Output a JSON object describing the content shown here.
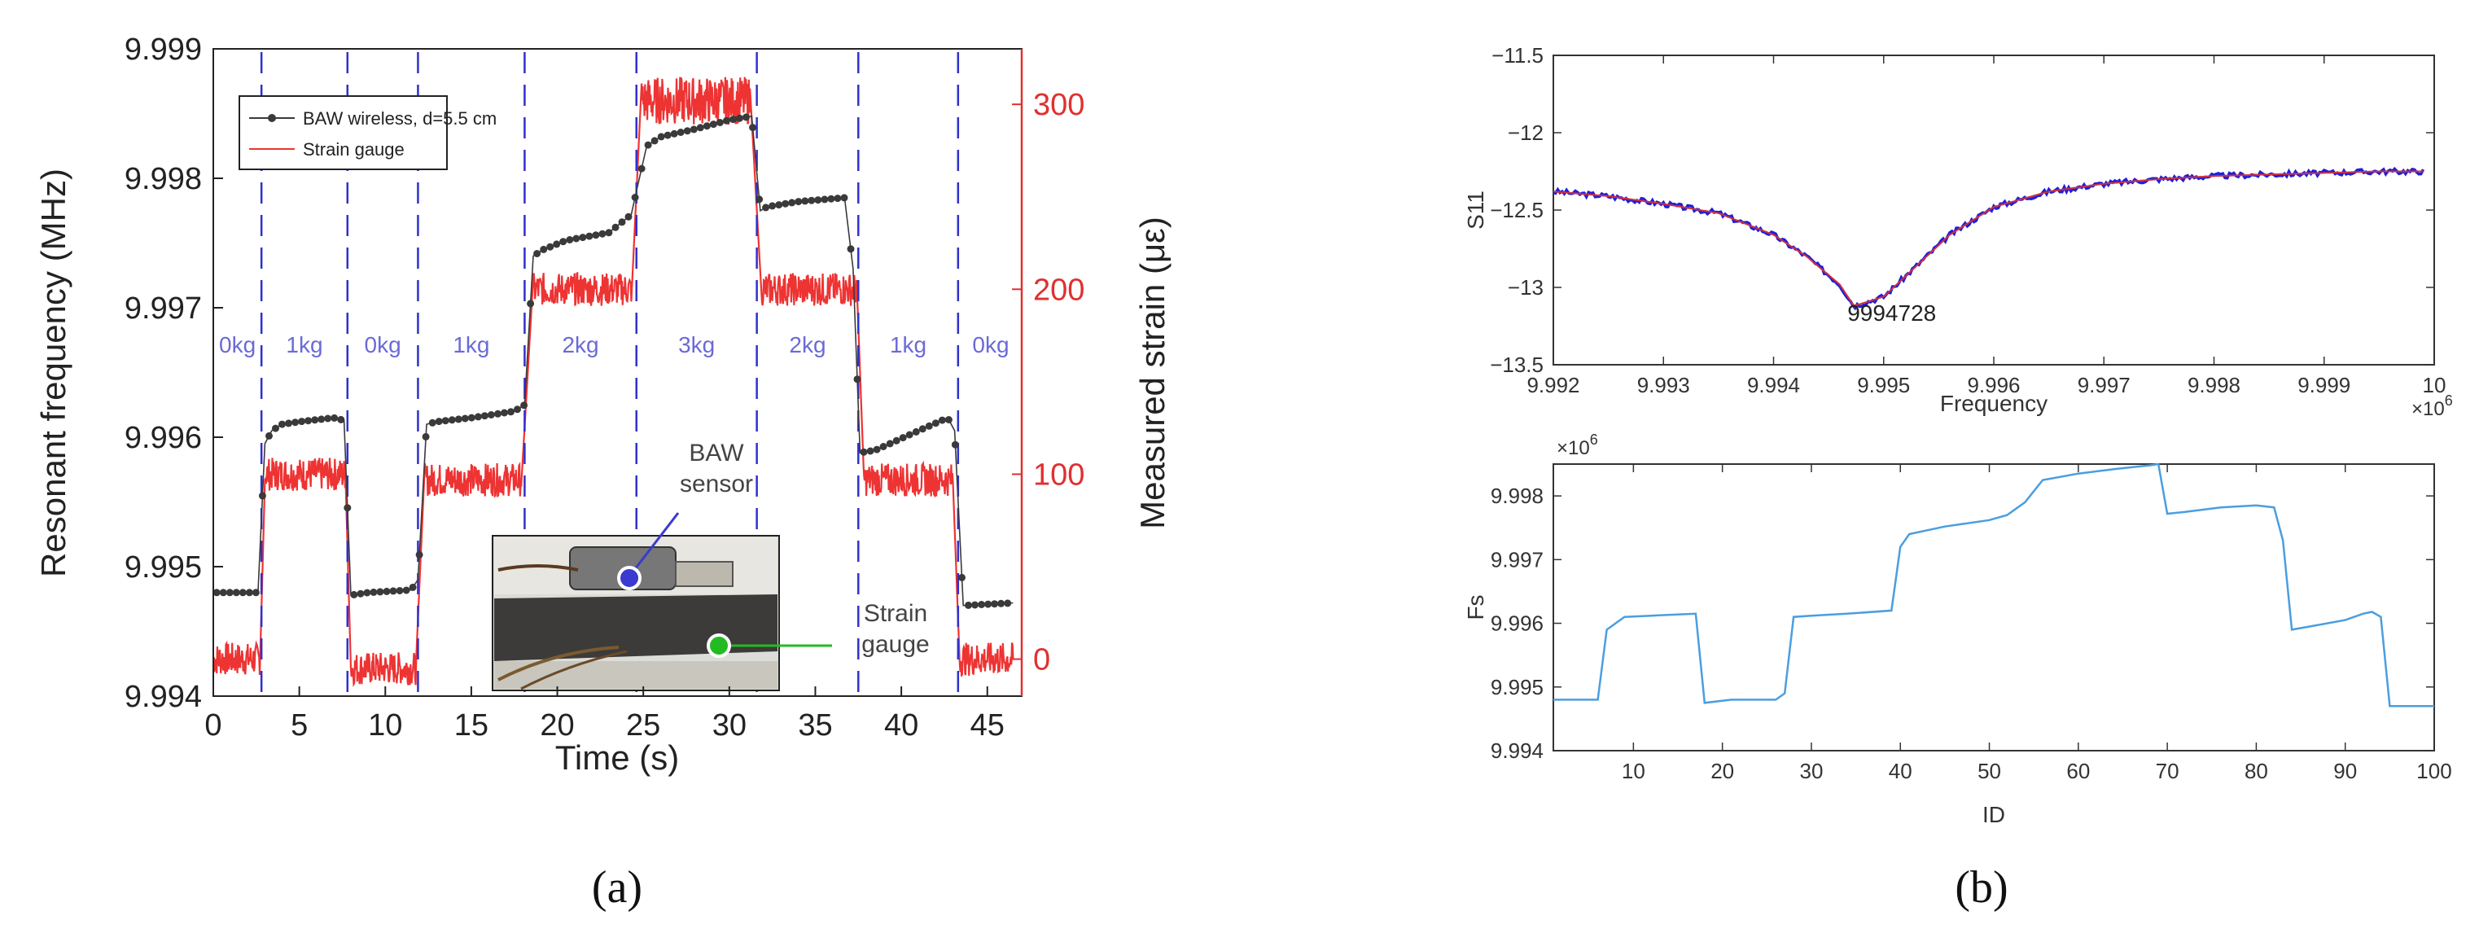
{
  "colors": {
    "baw_series": "#3a3a3a",
    "strain_series": "#ee3333",
    "strain_axis": "#e03030",
    "load_divider": "#3030cc",
    "load_label": "#6a6ad8",
    "s11_trace": "#2020d8",
    "s11_fit": "#d03040",
    "fs_trace": "#4a9ee0",
    "gauge_marker": "#22bb22",
    "sensor_marker": "#3a3ad0"
  },
  "panel_labels": [
    "(a)",
    "(b)"
  ],
  "chart_data": [
    {
      "id": "a",
      "type": "line",
      "title": "",
      "xlabel": "Time (s)",
      "ylabel": "Resonant frequency (MHz)",
      "y2label": "Measured strain (με)",
      "xlim": [
        0,
        47
      ],
      "ylim": [
        9.994,
        9.999
      ],
      "y2lim": [
        -20,
        330
      ],
      "xticks": [
        0,
        5,
        10,
        15,
        20,
        25,
        30,
        35,
        40,
        45
      ],
      "yticks": [
        9.994,
        9.995,
        9.996,
        9.997,
        9.998,
        9.999
      ],
      "ytick_labels": [
        "9.994",
        "9.995",
        "9.996",
        "9.997",
        "9.998",
        "9.999"
      ],
      "y2ticks": [
        0,
        100,
        200,
        300
      ],
      "grid": false,
      "legend_position": "top-left",
      "series": [
        {
          "name": "BAW wireless, d=5.5 cm",
          "axis": "left",
          "style": "line-with-dots",
          "x": [
            0,
            2.6,
            3.0,
            3.4,
            4.0,
            5.0,
            7.0,
            7.6,
            8.0,
            9.0,
            11.5,
            11.9,
            12.4,
            13.0,
            15.0,
            17.5,
            18.1,
            18.6,
            19.2,
            20.5,
            23.0,
            24.3,
            24.6,
            25.2,
            26.0,
            28.0,
            30.0,
            31.3,
            31.8,
            32.2,
            34.0,
            36.7,
            37.2,
            37.6,
            38.5,
            41.0,
            42.7,
            43.1,
            43.6,
            46.5
          ],
          "y": [
            9.9948,
            9.9948,
            9.99595,
            9.99605,
            9.9961,
            9.99612,
            9.99615,
            9.99613,
            9.99478,
            9.9948,
            9.99482,
            9.9949,
            9.9961,
            9.99612,
            9.99615,
            9.9962,
            9.99625,
            9.9974,
            9.99745,
            9.99752,
            9.99758,
            9.99772,
            9.9979,
            9.99825,
            9.99832,
            9.99838,
            9.99845,
            9.99848,
            9.99775,
            9.99778,
            9.99782,
            9.99785,
            9.9973,
            9.99588,
            9.9959,
            9.99605,
            9.99615,
            9.99605,
            9.9947,
            9.99472
          ]
        },
        {
          "name": "Strain gauge",
          "axis": "right",
          "style": "noisy-line",
          "levels": [
            {
              "t0": 0,
              "t1": 2.7,
              "value": 0
            },
            {
              "t0": 3.0,
              "t1": 7.7,
              "value": 100
            },
            {
              "t0": 8.0,
              "t1": 11.8,
              "value": -5
            },
            {
              "t0": 12.3,
              "t1": 17.9,
              "value": 97
            },
            {
              "t0": 18.6,
              "t1": 24.3,
              "value": 200
            },
            {
              "t0": 24.9,
              "t1": 31.2,
              "value": 302
            },
            {
              "t0": 31.9,
              "t1": 37.4,
              "value": 200
            },
            {
              "t0": 37.8,
              "t1": 43.0,
              "value": 97
            },
            {
              "t0": 43.4,
              "t1": 46.5,
              "value": 0
            }
          ]
        }
      ],
      "load_dividers_s": [
        2.8,
        7.8,
        11.9,
        18.1,
        24.6,
        31.6,
        37.5,
        43.3
      ],
      "load_labels": [
        {
          "text": "0kg",
          "t": 1.4
        },
        {
          "text": "1kg",
          "t": 5.3
        },
        {
          "text": "0kg",
          "t": 9.85
        },
        {
          "text": "1kg",
          "t": 15.0
        },
        {
          "text": "2kg",
          "t": 21.35
        },
        {
          "text": "3kg",
          "t": 28.1
        },
        {
          "text": "2kg",
          "t": 34.55
        },
        {
          "text": "1kg",
          "t": 40.4
        },
        {
          "text": "0kg",
          "t": 45.2
        }
      ],
      "annotations": {
        "baw_sensor": "BAW\nsensor",
        "strain_gauge": "Strain\ngauge"
      }
    },
    {
      "id": "b-top",
      "type": "line",
      "title": "",
      "xlabel": "Frequency",
      "ylabel": "S11",
      "x_multiplier": "×10^6",
      "xlim": [
        9.992,
        10.0
      ],
      "ylim": [
        -13.5,
        -11.5
      ],
      "xticks": [
        9.992,
        9.993,
        9.994,
        9.995,
        9.996,
        9.997,
        9.998,
        9.999,
        10.0
      ],
      "xtick_labels": [
        "9.992",
        "9.993",
        "9.994",
        "9.995",
        "9.996",
        "9.997",
        "9.998",
        "9.999",
        "10"
      ],
      "yticks": [
        -11.5,
        -12,
        -12.5,
        -13,
        -13.5
      ],
      "ytick_labels": [
        "−11.5",
        "−12",
        "−12.5",
        "−13",
        "−13.5"
      ],
      "grid": false,
      "series": [
        {
          "name": "S11",
          "x": [
            9.992,
            9.9925,
            9.993,
            9.9935,
            9.994,
            9.9943,
            9.9946,
            9.99473,
            9.995,
            9.9953,
            9.9956,
            9.996,
            9.9965,
            9.997,
            9.9975,
            9.998,
            9.9985,
            9.999,
            9.9995,
            9.9999
          ],
          "y": [
            -12.38,
            -12.41,
            -12.46,
            -12.52,
            -12.66,
            -12.8,
            -12.98,
            -13.12,
            -13.06,
            -12.86,
            -12.66,
            -12.48,
            -12.38,
            -12.33,
            -12.3,
            -12.28,
            -12.27,
            -12.26,
            -12.25,
            -12.25
          ]
        }
      ],
      "annotations": {
        "min_label": "9994728",
        "min_x": 9.99473,
        "min_y": -13.12
      }
    },
    {
      "id": "b-bottom",
      "type": "line",
      "title": "",
      "xlabel": "ID",
      "ylabel": "Fs",
      "y_multiplier": "×10^6",
      "xlim": [
        1,
        100
      ],
      "ylim": [
        9.994,
        9.9985
      ],
      "xticks": [
        10,
        20,
        30,
        40,
        50,
        60,
        70,
        80,
        90,
        100
      ],
      "yticks": [
        9.994,
        9.995,
        9.996,
        9.997,
        9.998
      ],
      "ytick_labels": [
        "9.994",
        "9.995",
        "9.996",
        "9.997",
        "9.998"
      ],
      "grid": false,
      "series": [
        {
          "name": "Fs",
          "x": [
            1,
            6,
            7,
            9,
            12,
            17,
            18,
            21,
            26,
            27,
            28,
            30,
            34,
            39,
            40,
            41,
            45,
            50,
            52,
            54,
            56,
            60,
            64,
            66,
            68,
            69,
            70,
            72,
            76,
            80,
            82,
            83,
            84,
            86,
            90,
            92,
            93,
            94,
            95,
            100
          ],
          "y": [
            9.9948,
            9.9948,
            9.9959,
            9.9961,
            9.99612,
            9.99615,
            9.99475,
            9.9948,
            9.9948,
            9.9949,
            9.9961,
            9.99612,
            9.99615,
            9.9962,
            9.9972,
            9.9974,
            9.99752,
            9.99762,
            9.9977,
            9.9979,
            9.99825,
            9.99835,
            9.99842,
            9.99845,
            9.99848,
            9.9985,
            9.99772,
            9.99775,
            9.99782,
            9.99785,
            9.99782,
            9.9973,
            9.9959,
            9.99595,
            9.99605,
            9.99615,
            9.99618,
            9.9961,
            9.9947,
            9.9947
          ]
        }
      ]
    }
  ]
}
